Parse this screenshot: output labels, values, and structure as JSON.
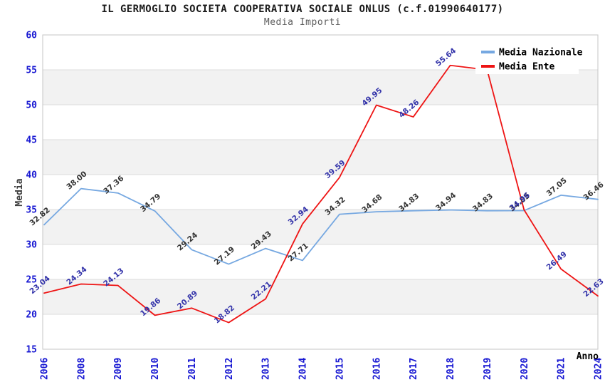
{
  "header": {
    "title": "IL GERMOGLIO SOCIETA COOPERATIVA SOCIALE ONLUS (c.f.01990640177)",
    "subtitle": "Media Importi"
  },
  "chart_data": {
    "type": "line",
    "title": "IL GERMOGLIO SOCIETA COOPERATIVA SOCIALE ONLUS (c.f.01990640177)",
    "subtitle": "Media Importi",
    "xlabel": "Anno",
    "ylabel": "Media",
    "ylim": [
      15,
      60
    ],
    "ytick_step": 5,
    "grid": "horizontal",
    "gray_bands": [
      [
        55,
        50
      ],
      [
        45,
        40
      ],
      [
        35,
        30
      ],
      [
        25,
        20
      ]
    ],
    "legend_position": "top-right",
    "categories": [
      "2006",
      "2008",
      "2009",
      "2010",
      "2011",
      "2012",
      "2013",
      "2014",
      "2015",
      "2016",
      "2017",
      "2018",
      "2019",
      "2020",
      "2021",
      "2024"
    ],
    "series": [
      {
        "name": "Media Nazionale",
        "color": "#76a8e1",
        "label_color": "#333333",
        "values": [
          32.82,
          38.0,
          37.36,
          34.79,
          29.24,
          27.19,
          29.43,
          27.71,
          34.32,
          34.68,
          34.83,
          34.94,
          34.83,
          34.85,
          37.05,
          36.46
        ],
        "hidden_label_indexes": []
      },
      {
        "name": "Media Ente",
        "color": "#ee1414",
        "label_color": "#3434aa",
        "values": [
          23.04,
          24.34,
          24.13,
          19.86,
          20.89,
          18.82,
          22.21,
          32.94,
          39.59,
          49.95,
          48.26,
          55.64,
          55.0,
          34.96,
          26.49,
          22.63
        ],
        "hidden_label_indexes": [
          12
        ]
      }
    ],
    "colors": {
      "band": "#f2f2f2",
      "gridline": "#dcdcdc",
      "plot_border": "#c4c4c4",
      "tick_label": "#1717d2",
      "legend_bg": "#ffffff"
    }
  }
}
